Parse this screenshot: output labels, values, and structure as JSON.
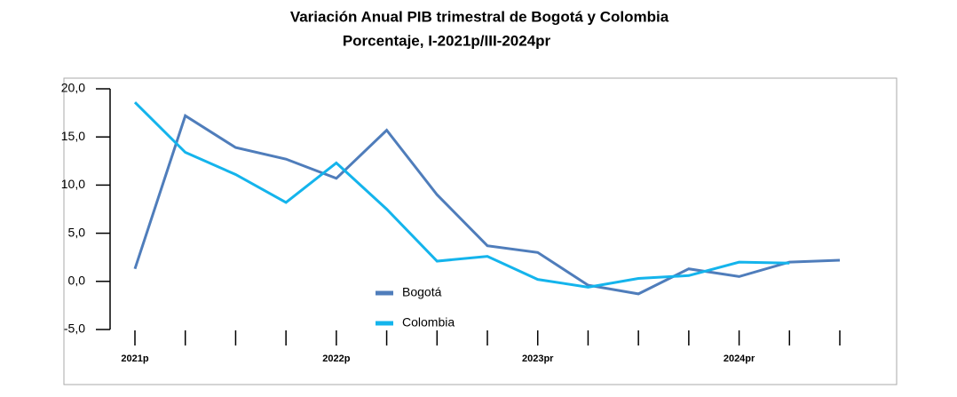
{
  "chart_data": {
    "type": "line",
    "title": "Variación Anual PIB trimestral de Bogotá y Colombia",
    "subtitle": "Porcentaje, I-2021p/III-2024pr",
    "categories": [
      "2021p",
      null,
      null,
      null,
      "2022p",
      null,
      null,
      null,
      "2023pr",
      null,
      null,
      null,
      "2024pr",
      null,
      null
    ],
    "series": [
      {
        "name": "Bogotá",
        "color": "#4f7dbb",
        "values": [
          1.3,
          17.2,
          13.9,
          12.7,
          10.7,
          15.7,
          9.0,
          3.7,
          3.0,
          -0.4,
          -1.3,
          1.3,
          0.5,
          2.0,
          2.2
        ]
      },
      {
        "name": "Colombia",
        "color": "#14b4ec",
        "values": [
          18.6,
          13.4,
          11.1,
          8.2,
          12.3,
          7.5,
          2.1,
          2.6,
          0.2,
          -0.6,
          0.3,
          0.6,
          2.0,
          1.9,
          null
        ]
      }
    ],
    "ylim": [
      -5,
      20
    ],
    "yticks": [
      {
        "value": -5,
        "label": "-5,0"
      },
      {
        "value": 0,
        "label": "0,0"
      },
      {
        "value": 5,
        "label": "5,0"
      },
      {
        "value": 10,
        "label": "10,0"
      },
      {
        "value": 15,
        "label": "15,0"
      },
      {
        "value": 20,
        "label": "20,0"
      }
    ],
    "grid": false
  }
}
